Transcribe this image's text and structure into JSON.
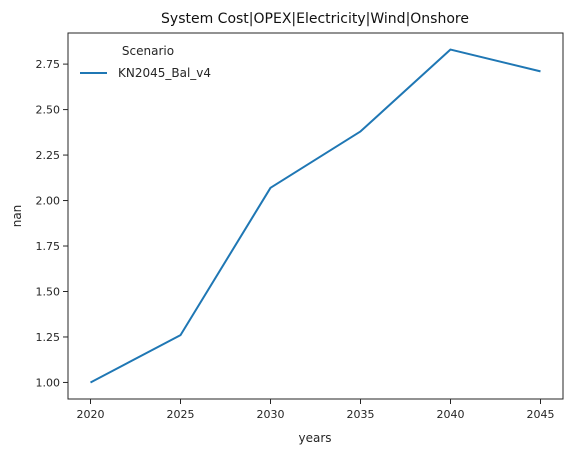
{
  "chart_data": {
    "type": "line",
    "title": "System Cost|OPEX|Electricity|Wind|Onshore",
    "xlabel": "years",
    "ylabel": "nan",
    "x": [
      2020,
      2025,
      2030,
      2035,
      2040,
      2045
    ],
    "xticks": [
      "2020",
      "2025",
      "2030",
      "2035",
      "2040",
      "2045"
    ],
    "yticks": [
      "1.00",
      "1.25",
      "1.50",
      "1.75",
      "2.00",
      "2.25",
      "2.50",
      "2.75"
    ],
    "xlim": [
      2018.75,
      2046.25
    ],
    "ylim": [
      0.909,
      2.921
    ],
    "grid": false,
    "legend": {
      "title": "Scenario",
      "placement": "top-left"
    },
    "series": [
      {
        "name": "KN2045_Bal_v4",
        "color": "#1f77b4",
        "values": [
          1.0,
          1.26,
          2.07,
          2.38,
          2.83,
          2.71
        ]
      }
    ]
  }
}
